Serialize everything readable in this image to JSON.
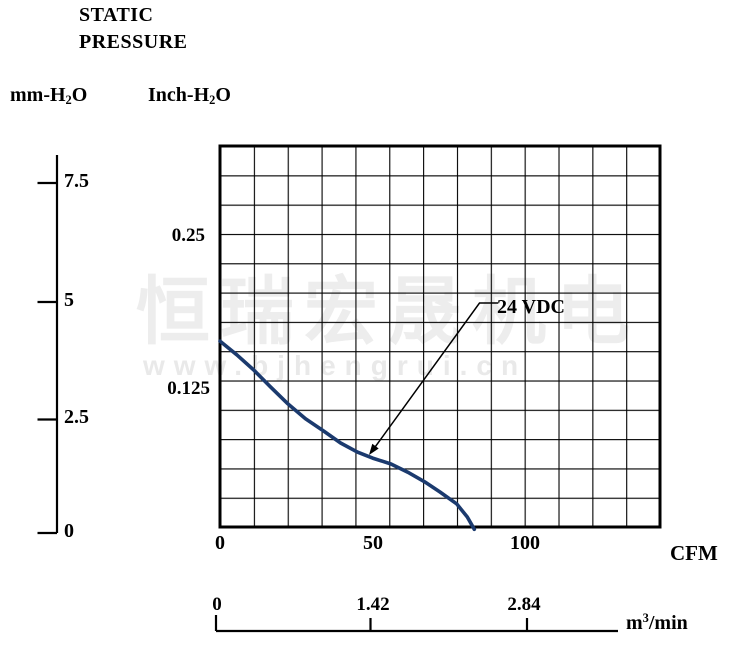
{
  "title": {
    "line1": "STATIC",
    "line2": "PRESSURE"
  },
  "axes": {
    "left_primary": {
      "label_pre": "mm-H",
      "label_sub": "2",
      "label_post": "O",
      "ticks": [
        "7.5",
        "5",
        "2.5",
        "0"
      ]
    },
    "left_secondary": {
      "label_pre": "Inch-H",
      "label_sub": "2",
      "label_post": "O",
      "ticks": [
        "0.25",
        "0.125"
      ]
    },
    "bottom_primary": {
      "label": "CFM",
      "ticks": [
        "0",
        "50",
        "100"
      ]
    },
    "bottom_secondary": {
      "label_pre": "m",
      "label_sup": "3",
      "label_post": "/min",
      "ticks": [
        "0",
        "1.42",
        "2.84"
      ]
    }
  },
  "series_label": "24 VDC",
  "watermark": {
    "cjk": "恒瑞宏晟机电",
    "url": "www.bjhengrui.cn"
  },
  "colors": {
    "curve": "#1b3a6e",
    "grid": "#000000",
    "watermark": "#ededed"
  },
  "chart_data": {
    "type": "line",
    "title": "STATIC PRESSURE",
    "xlabel": "CFM",
    "xlabel_secondary": "m3/min",
    "ylabel": "mm-H2O",
    "ylabel_secondary": "Inch-H2O",
    "x_ticks_cfm": [
      0,
      50,
      100
    ],
    "x_ticks_m3min": [
      0,
      1.42,
      2.84
    ],
    "y_ticks_mm": [
      0,
      2.5,
      5,
      7.5
    ],
    "y_ticks_inch": [
      0.125,
      0.25
    ],
    "xlim_cfm": [
      0,
      144
    ],
    "ylim_mm": [
      0,
      8.3
    ],
    "grid": true,
    "grid_cells": {
      "cols": 13,
      "rows": 13
    },
    "legend_position": "annotation-arrow",
    "series": [
      {
        "name": "24 VDC",
        "points_cfm_mmH2O": [
          [
            0,
            4.2
          ],
          [
            5.5,
            3.9
          ],
          [
            11,
            3.57
          ],
          [
            16.5,
            3.2
          ],
          [
            22,
            2.84
          ],
          [
            28,
            2.5
          ],
          [
            34,
            2.23
          ],
          [
            39.5,
            1.97
          ],
          [
            45,
            1.77
          ],
          [
            50,
            1.64
          ],
          [
            56,
            1.51
          ],
          [
            61.5,
            1.33
          ],
          [
            67,
            1.12
          ],
          [
            72,
            0.9
          ],
          [
            77.5,
            0.64
          ],
          [
            81,
            0.35
          ],
          [
            83.3,
            0.08
          ]
        ],
        "max_airflow_cfm": 83,
        "max_static_pressure_mm": 4.2
      }
    ]
  }
}
